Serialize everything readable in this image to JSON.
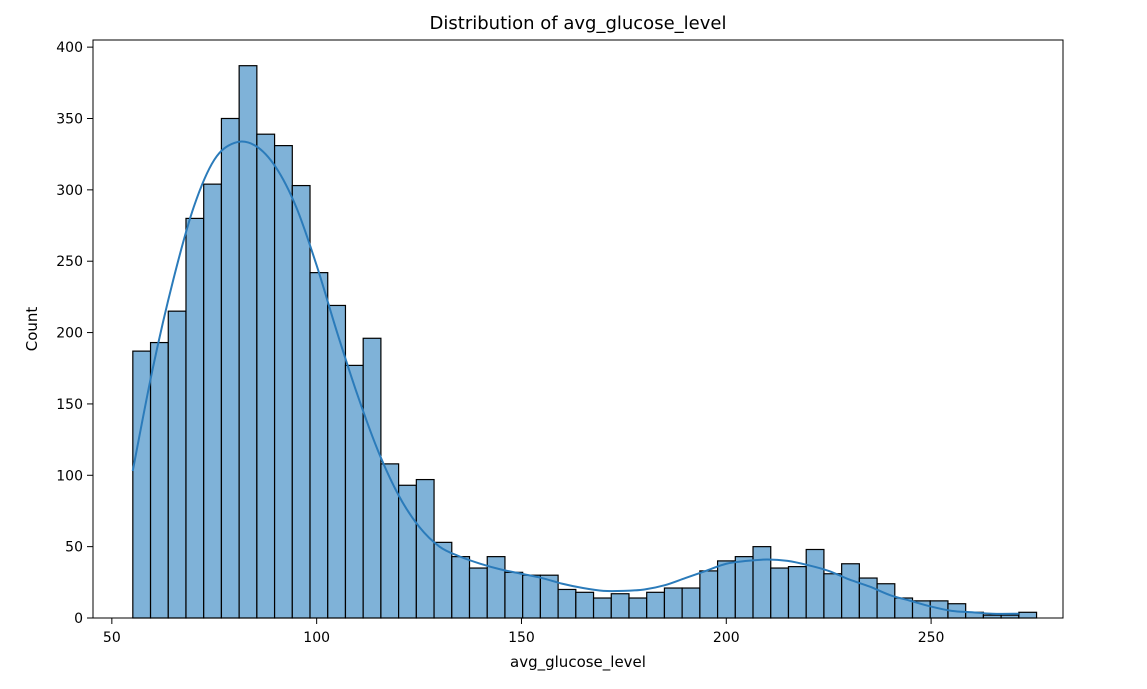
{
  "chart_data": {
    "type": "bar",
    "subtype": "histogram",
    "title": "Distribution of avg_glucose_level",
    "xlabel": "avg_glucose_level",
    "ylabel": "Count",
    "xlim": [
      45.4,
      282.2
    ],
    "ylim": [
      0,
      405
    ],
    "xticks": [
      50,
      100,
      150,
      200,
      250
    ],
    "yticks": [
      0,
      50,
      100,
      150,
      200,
      250,
      300,
      350,
      400
    ],
    "grid": false,
    "legend": "none",
    "bar_color": "#7fb2d8",
    "edge_color": "#000000",
    "kde_color": "#2b7bba",
    "bins": {
      "start": 55.12,
      "width": 4.326,
      "counts": [
        187,
        193,
        215,
        280,
        304,
        350,
        387,
        339,
        331,
        303,
        242,
        219,
        177,
        196,
        108,
        93,
        97,
        53,
        43,
        35,
        43,
        32,
        30,
        30,
        20,
        18,
        14,
        17,
        14,
        18,
        21,
        21,
        33,
        40,
        43,
        50,
        35,
        36,
        48,
        31,
        38,
        28,
        24,
        14,
        12,
        12,
        10,
        4,
        2,
        2,
        4
      ]
    },
    "kde": {
      "x": [
        55.1,
        60,
        65,
        70,
        75,
        80,
        85,
        90,
        95,
        100,
        105,
        110,
        115,
        120,
        125,
        130,
        135,
        140,
        145,
        150,
        155,
        160,
        165,
        170,
        175,
        180,
        185,
        190,
        195,
        200,
        205,
        210,
        215,
        220,
        225,
        230,
        235,
        240,
        245,
        250,
        255,
        260,
        265,
        271.4
      ],
      "y": [
        103,
        175,
        237,
        288,
        321,
        333,
        331,
        316,
        288,
        247,
        200,
        156,
        117,
        86,
        64,
        50,
        43,
        38,
        34,
        31,
        28,
        24,
        21,
        19,
        19,
        20,
        23,
        28,
        33,
        38,
        40,
        41,
        40,
        37,
        33,
        27,
        22,
        16,
        12,
        8,
        5,
        4,
        3,
        3
      ]
    }
  }
}
